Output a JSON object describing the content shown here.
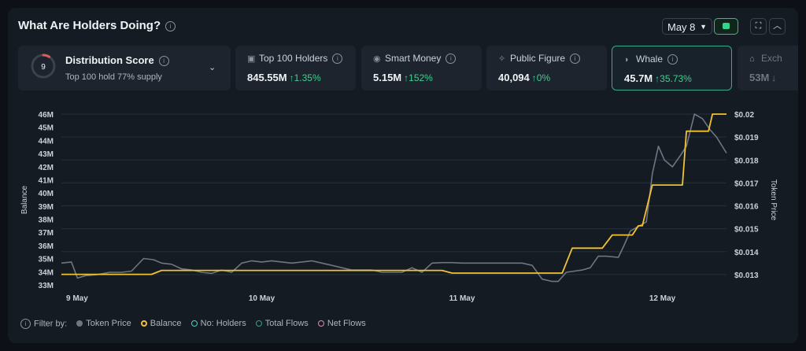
{
  "header": {
    "title": "What Are Holders Doing?",
    "date": "May 8"
  },
  "score": {
    "value": "9",
    "title": "Distribution Score",
    "subtitle": "Top 100 hold 77% supply",
    "fraction": 0.09
  },
  "cards": [
    {
      "label": "Top 100 Holders",
      "value": "845.55M",
      "change": "↑1.35%",
      "icon": "wallet-icon"
    },
    {
      "label": "Smart Money",
      "value": "5.15M",
      "change": "↑152%",
      "icon": "smart-money-icon"
    },
    {
      "label": "Public Figure",
      "value": "40,094",
      "change": "↑0%",
      "icon": "public-figure-icon"
    },
    {
      "label": "Whale",
      "value": "45.7M",
      "change": "↑35.73%",
      "icon": "whale-icon"
    },
    {
      "label": "Exch",
      "value": "53M",
      "change": "↓",
      "icon": "exchange-icon"
    }
  ],
  "filters": {
    "label": "Filter by:",
    "items": [
      {
        "name": "Token Price",
        "color": "#6e7681",
        "filled": true
      },
      {
        "name": "Balance",
        "color": "#f2c230",
        "filled": false
      },
      {
        "name": "No: Holders",
        "color": "#4bd1c0",
        "filled": false
      },
      {
        "name": "Total Flows",
        "color": "#3a9e8c",
        "filled": false
      },
      {
        "name": "Net Flows",
        "color": "#d88fa8",
        "filled": false
      }
    ]
  },
  "chart_data": {
    "type": "line",
    "x_ticks": [
      "9 May",
      "10 May",
      "11 May",
      "12 May"
    ],
    "ylabel_left": "Balance",
    "ylabel_right": "Token Price",
    "left_ticks": [
      "33M",
      "34M",
      "35M",
      "36M",
      "37M",
      "38M",
      "39M",
      "40M",
      "41M",
      "42M",
      "43M",
      "44M",
      "45M",
      "46M"
    ],
    "right_ticks": [
      "$0.013",
      "$0.014",
      "$0.015",
      "$0.016",
      "$0.017",
      "$0.018",
      "$0.019",
      "$0.02"
    ],
    "ylim_left": [
      33,
      46
    ],
    "ylim_right": [
      0.01255,
      0.02
    ],
    "x_range": [
      0,
      3.32
    ],
    "series": [
      {
        "name": "Balance",
        "color": "#f2c230",
        "axis": "left",
        "points": [
          [
            0,
            33.8
          ],
          [
            0.45,
            33.8
          ],
          [
            0.5,
            34.1
          ],
          [
            1.9,
            34.1
          ],
          [
            1.95,
            33.9
          ],
          [
            2.4,
            33.9
          ],
          [
            2.5,
            33.9
          ],
          [
            2.55,
            35.8
          ],
          [
            2.7,
            35.8
          ],
          [
            2.75,
            36.8
          ],
          [
            2.85,
            36.8
          ],
          [
            2.88,
            37.5
          ],
          [
            2.9,
            37.5
          ],
          [
            2.95,
            40.6
          ],
          [
            3.1,
            40.6
          ],
          [
            3.12,
            44.7
          ],
          [
            3.23,
            44.7
          ],
          [
            3.25,
            46
          ],
          [
            3.32,
            46
          ]
        ]
      },
      {
        "name": "Token Price",
        "color": "#6e7681",
        "axis": "right",
        "points": [
          [
            0,
            0.0135
          ],
          [
            0.05,
            0.01355
          ],
          [
            0.08,
            0.01285
          ],
          [
            0.12,
            0.01295
          ],
          [
            0.18,
            0.013
          ],
          [
            0.24,
            0.0131
          ],
          [
            0.3,
            0.0131
          ],
          [
            0.35,
            0.01315
          ],
          [
            0.41,
            0.0137
          ],
          [
            0.46,
            0.01365
          ],
          [
            0.5,
            0.0135
          ],
          [
            0.55,
            0.01345
          ],
          [
            0.6,
            0.01325
          ],
          [
            0.65,
            0.0132
          ],
          [
            0.7,
            0.0131
          ],
          [
            0.75,
            0.01305
          ],
          [
            0.8,
            0.0132
          ],
          [
            0.85,
            0.0131
          ],
          [
            0.9,
            0.0135
          ],
          [
            0.95,
            0.0136
          ],
          [
            1.0,
            0.01355
          ],
          [
            1.05,
            0.0136
          ],
          [
            1.1,
            0.01355
          ],
          [
            1.15,
            0.0135
          ],
          [
            1.2,
            0.01355
          ],
          [
            1.25,
            0.0136
          ],
          [
            1.3,
            0.0135
          ],
          [
            1.35,
            0.0134
          ],
          [
            1.4,
            0.0133
          ],
          [
            1.45,
            0.0132
          ],
          [
            1.5,
            0.0132
          ],
          [
            1.55,
            0.0132
          ],
          [
            1.6,
            0.0131
          ],
          [
            1.65,
            0.0131
          ],
          [
            1.7,
            0.0131
          ],
          [
            1.75,
            0.0133
          ],
          [
            1.8,
            0.0131
          ],
          [
            1.85,
            0.0135
          ],
          [
            1.9,
            0.01352
          ],
          [
            1.95,
            0.01352
          ],
          [
            2.0,
            0.0135
          ],
          [
            2.1,
            0.0135
          ],
          [
            2.2,
            0.0135
          ],
          [
            2.3,
            0.0135
          ],
          [
            2.35,
            0.0134
          ],
          [
            2.4,
            0.0128
          ],
          [
            2.45,
            0.0127
          ],
          [
            2.48,
            0.0127
          ],
          [
            2.52,
            0.0131
          ],
          [
            2.56,
            0.01315
          ],
          [
            2.6,
            0.0132
          ],
          [
            2.64,
            0.0133
          ],
          [
            2.68,
            0.0138
          ],
          [
            2.72,
            0.0138
          ],
          [
            2.78,
            0.01375
          ],
          [
            2.81,
            0.0143
          ],
          [
            2.84,
            0.0149
          ],
          [
            2.88,
            0.0151
          ],
          [
            2.92,
            0.0153
          ],
          [
            2.95,
            0.0174
          ],
          [
            2.98,
            0.0186
          ],
          [
            3.01,
            0.018
          ],
          [
            3.05,
            0.0177
          ],
          [
            3.09,
            0.0182
          ],
          [
            3.12,
            0.0186
          ],
          [
            3.16,
            0.02
          ],
          [
            3.2,
            0.0198
          ],
          [
            3.24,
            0.0193
          ],
          [
            3.27,
            0.019
          ],
          [
            3.32,
            0.0183
          ]
        ]
      }
    ]
  }
}
